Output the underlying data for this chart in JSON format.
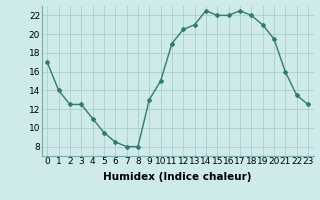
{
  "x": [
    0,
    1,
    2,
    3,
    4,
    5,
    6,
    7,
    8,
    9,
    10,
    11,
    12,
    13,
    14,
    15,
    16,
    17,
    18,
    19,
    20,
    21,
    22,
    23
  ],
  "y": [
    17,
    14,
    12.5,
    12.5,
    11,
    9.5,
    8.5,
    8,
    8,
    13,
    15,
    19,
    20.5,
    21,
    22.5,
    22,
    22,
    22.5,
    22,
    21,
    19.5,
    16,
    13.5,
    12.5
  ],
  "line_color": "#2e7d6e",
  "marker": "D",
  "marker_size": 2,
  "background_color": "#ceeaea",
  "grid_color": "#aacece",
  "xlabel": "Humidex (Indice chaleur)",
  "ylabel": "",
  "title": "",
  "xlim": [
    -0.5,
    23.5
  ],
  "ylim": [
    7,
    23
  ],
  "yticks": [
    8,
    10,
    12,
    14,
    16,
    18,
    20,
    22
  ],
  "xticks": [
    0,
    1,
    2,
    3,
    4,
    5,
    6,
    7,
    8,
    9,
    10,
    11,
    12,
    13,
    14,
    15,
    16,
    17,
    18,
    19,
    20,
    21,
    22,
    23
  ],
  "xtick_labels": [
    "0",
    "1",
    "2",
    "3",
    "4",
    "5",
    "6",
    "7",
    "8",
    "9",
    "10",
    "11",
    "12",
    "13",
    "14",
    "15",
    "16",
    "17",
    "18",
    "19",
    "20",
    "21",
    "22",
    "23"
  ],
  "xlabel_fontsize": 7.5,
  "tick_fontsize": 6.5
}
